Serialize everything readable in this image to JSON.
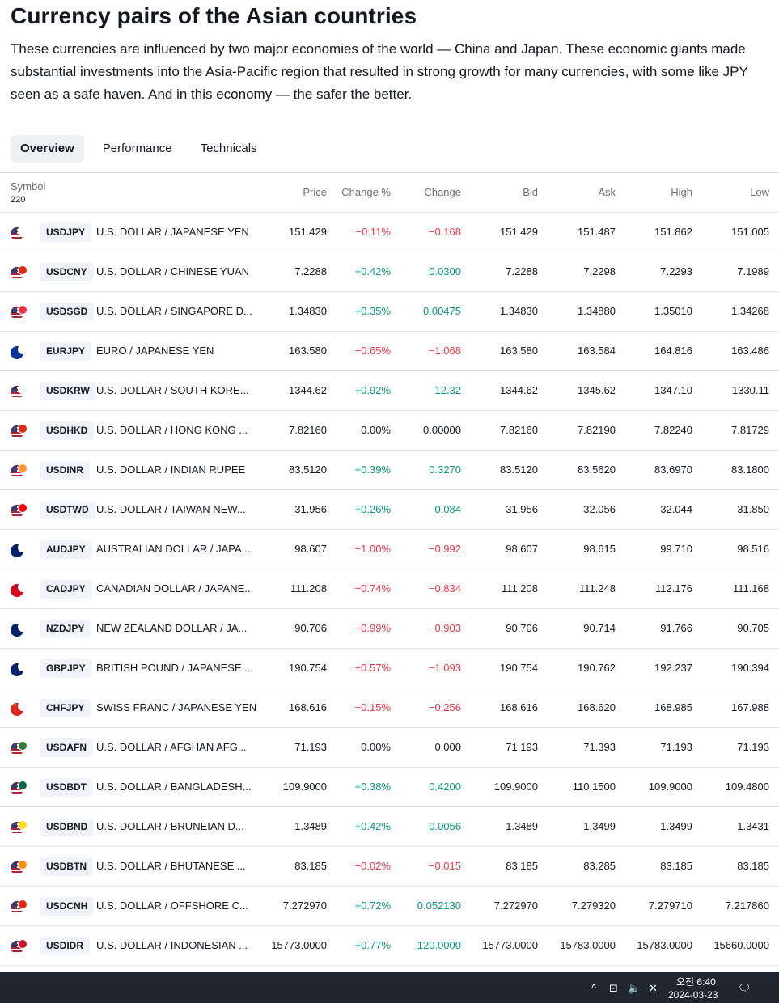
{
  "header": {
    "title": "Currency pairs of the Asian countries",
    "description": "These currencies are influenced by two major economies of the world — China and Japan. These economic giants made substantial investments into the Asia-Pacific region that resulted in strong growth for many currencies, with some like JPY seen as a safe haven. And in this economy — the safer the better."
  },
  "tabs": [
    {
      "label": "Overview",
      "active": true
    },
    {
      "label": "Performance",
      "active": false
    },
    {
      "label": "Technicals",
      "active": false
    }
  ],
  "table": {
    "columns": {
      "symbol": "Symbol",
      "count": "220",
      "price": "Price",
      "change_pct": "Change %",
      "change": "Change",
      "bid": "Bid",
      "ask": "Ask",
      "high": "High",
      "low": "Low"
    },
    "rows": [
      {
        "ticker": "USDJPY",
        "name": "U.S. DOLLAR / JAPANESE YEN",
        "price": "151.429",
        "change_pct": "−0.11%",
        "change": "−0.168",
        "bid": "151.429",
        "ask": "151.487",
        "high": "151.862",
        "low": "151.005",
        "trend": "neg",
        "flag": "us",
        "sub_color": "#ffffff"
      },
      {
        "ticker": "USDCNY",
        "name": "U.S. DOLLAR / CHINESE YUAN",
        "price": "7.2288",
        "change_pct": "+0.42%",
        "change": "0.0300",
        "bid": "7.2288",
        "ask": "7.2298",
        "high": "7.2293",
        "low": "7.1989",
        "trend": "pos",
        "flag": "us",
        "sub_color": "#de2910"
      },
      {
        "ticker": "USDSGD",
        "name": "U.S. DOLLAR / SINGAPORE D...",
        "price": "1.34830",
        "change_pct": "+0.35%",
        "change": "0.00475",
        "bid": "1.34830",
        "ask": "1.34880",
        "high": "1.35010",
        "low": "1.34268",
        "trend": "pos",
        "flag": "us",
        "sub_color": "#ef3340"
      },
      {
        "ticker": "EURJPY",
        "name": "EURO / JAPANESE YEN",
        "price": "163.580",
        "change_pct": "−0.65%",
        "change": "−1.068",
        "bid": "163.580",
        "ask": "163.584",
        "high": "164.816",
        "low": "163.486",
        "trend": "neg",
        "flag": "eu",
        "sub_color": "#ffffff"
      },
      {
        "ticker": "USDKRW",
        "name": "U.S. DOLLAR / SOUTH KORE...",
        "price": "1344.62",
        "change_pct": "+0.92%",
        "change": "12.32",
        "bid": "1344.62",
        "ask": "1345.62",
        "high": "1347.10",
        "low": "1330.11",
        "trend": "pos",
        "flag": "us",
        "sub_color": "#f5f5f5"
      },
      {
        "ticker": "USDHKD",
        "name": "U.S. DOLLAR / HONG KONG ...",
        "price": "7.82160",
        "change_pct": "0.00%",
        "change": "0.00000",
        "bid": "7.82160",
        "ask": "7.82190",
        "high": "7.82240",
        "low": "7.81729",
        "trend": "neutral",
        "flag": "us",
        "sub_color": "#de2910"
      },
      {
        "ticker": "USDINR",
        "name": "U.S. DOLLAR / INDIAN RUPEE",
        "price": "83.5120",
        "change_pct": "+0.39%",
        "change": "0.3270",
        "bid": "83.5120",
        "ask": "83.5620",
        "high": "83.6970",
        "low": "83.1800",
        "trend": "pos",
        "flag": "us",
        "sub_color": "#ff9933"
      },
      {
        "ticker": "USDTWD",
        "name": "U.S. DOLLAR / TAIWAN NEW...",
        "price": "31.956",
        "change_pct": "+0.26%",
        "change": "0.084",
        "bid": "31.956",
        "ask": "32.056",
        "high": "32.044",
        "low": "31.850",
        "trend": "pos",
        "flag": "us",
        "sub_color": "#fe0000"
      },
      {
        "ticker": "AUDJPY",
        "name": "AUSTRALIAN DOLLAR / JAPA...",
        "price": "98.607",
        "change_pct": "−1.00%",
        "change": "−0.992",
        "bid": "98.607",
        "ask": "98.615",
        "high": "99.710",
        "low": "98.516",
        "trend": "neg",
        "flag": "au",
        "sub_color": "#ffffff"
      },
      {
        "ticker": "CADJPY",
        "name": "CANADIAN DOLLAR / JAPANE...",
        "price": "111.208",
        "change_pct": "−0.74%",
        "change": "−0.834",
        "bid": "111.208",
        "ask": "111.248",
        "high": "112.176",
        "low": "111.168",
        "trend": "neg",
        "flag": "ca",
        "sub_color": "#ffffff"
      },
      {
        "ticker": "NZDJPY",
        "name": "NEW ZEALAND DOLLAR / JA...",
        "price": "90.706",
        "change_pct": "−0.99%",
        "change": "−0.903",
        "bid": "90.706",
        "ask": "90.714",
        "high": "91.766",
        "low": "90.705",
        "trend": "neg",
        "flag": "nz",
        "sub_color": "#ffffff"
      },
      {
        "ticker": "GBPJPY",
        "name": "BRITISH POUND / JAPANESE ...",
        "price": "190.754",
        "change_pct": "−0.57%",
        "change": "−1.093",
        "bid": "190.754",
        "ask": "190.762",
        "high": "192.237",
        "low": "190.394",
        "trend": "neg",
        "flag": "gb",
        "sub_color": "#ffffff"
      },
      {
        "ticker": "CHFJPY",
        "name": "SWISS FRANC / JAPANESE YEN",
        "price": "168.616",
        "change_pct": "−0.15%",
        "change": "−0.256",
        "bid": "168.616",
        "ask": "168.620",
        "high": "168.985",
        "low": "167.988",
        "trend": "neg",
        "flag": "ch",
        "sub_color": "#ffffff"
      },
      {
        "ticker": "USDAFN",
        "name": "U.S. DOLLAR / AFGHAN AFG...",
        "price": "71.193",
        "change_pct": "0.00%",
        "change": "0.000",
        "bid": "71.193",
        "ask": "71.393",
        "high": "71.193",
        "low": "71.193",
        "trend": "neutral",
        "flag": "us",
        "sub_color": "#2e7d32"
      },
      {
        "ticker": "USDBDT",
        "name": "U.S. DOLLAR / BANGLADESH...",
        "price": "109.9000",
        "change_pct": "+0.38%",
        "change": "0.4200",
        "bid": "109.9000",
        "ask": "110.1500",
        "high": "109.9000",
        "low": "109.4800",
        "trend": "pos",
        "flag": "us",
        "sub_color": "#006a4e"
      },
      {
        "ticker": "USDBND",
        "name": "U.S. DOLLAR / BRUNEIAN D...",
        "price": "1.3489",
        "change_pct": "+0.42%",
        "change": "0.0056",
        "bid": "1.3489",
        "ask": "1.3499",
        "high": "1.3499",
        "low": "1.3431",
        "trend": "pos",
        "flag": "us",
        "sub_color": "#f7e017"
      },
      {
        "ticker": "USDBTN",
        "name": "U.S. DOLLAR / BHUTANESE ...",
        "price": "83.185",
        "change_pct": "−0.02%",
        "change": "−0.015",
        "bid": "83.185",
        "ask": "83.285",
        "high": "83.185",
        "low": "83.185",
        "trend": "neg",
        "flag": "us",
        "sub_color": "#ff8c00"
      },
      {
        "ticker": "USDCNH",
        "name": "U.S. DOLLAR / OFFSHORE C...",
        "price": "7.272970",
        "change_pct": "+0.72%",
        "change": "0.052130",
        "bid": "7.272970",
        "ask": "7.279320",
        "high": "7.279710",
        "low": "7.217860",
        "trend": "pos",
        "flag": "us",
        "sub_color": "#de2910"
      },
      {
        "ticker": "USDIDR",
        "name": "U.S. DOLLAR / INDONESIAN ...",
        "price": "15773.0000",
        "change_pct": "+0.77%",
        "change": "120.0000",
        "bid": "15773.0000",
        "ask": "15783.0000",
        "high": "15783.0000",
        "low": "15660.0000",
        "trend": "pos",
        "flag": "us",
        "sub_color": "#ce1126"
      }
    ]
  },
  "taskbar": {
    "time": "오전 6:40",
    "date": "2024-03-23",
    "chevron_icon": "^",
    "network_icon": "⊡",
    "volume_icon": "🔈",
    "close_icon": "✕",
    "notification_icon": "🗨"
  },
  "colors": {
    "negative": "#f23645",
    "positive": "#089981",
    "tab_active_bg": "#eef0f3",
    "ticker_bg": "#f0f3fa"
  }
}
